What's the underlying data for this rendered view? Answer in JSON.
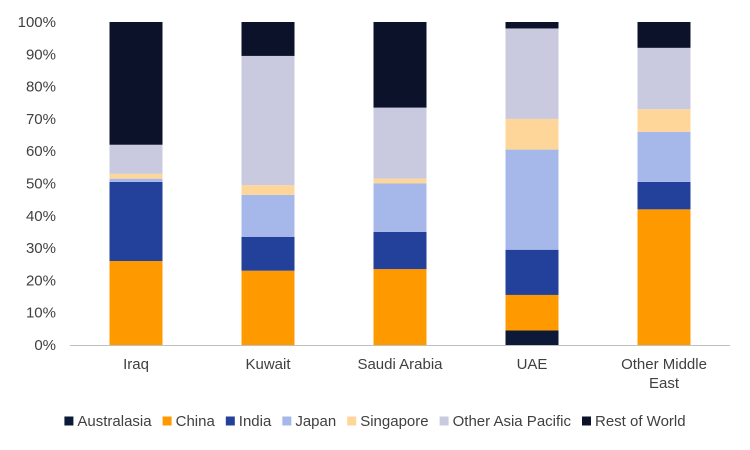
{
  "chart_data": {
    "type": "bar",
    "stacked": true,
    "categories": [
      "Iraq",
      "Kuwait",
      "Saudi Arabia",
      "UAE",
      "Other Middle East"
    ],
    "category_lines": [
      [
        "Iraq"
      ],
      [
        "Kuwait"
      ],
      [
        "Saudi Arabia"
      ],
      [
        "UAE"
      ],
      [
        "Other Middle",
        "East"
      ]
    ],
    "ylim": [
      0,
      100
    ],
    "y_ticks": [
      0,
      10,
      20,
      30,
      40,
      50,
      60,
      70,
      80,
      90,
      100
    ],
    "y_tick_suffix": "%",
    "grid": false,
    "legend_position": "bottom",
    "series": [
      {
        "name": "Australasia",
        "color": "#0c1a38",
        "values": [
          0,
          0,
          0,
          4.5,
          0
        ]
      },
      {
        "name": "China",
        "color": "#ff9900",
        "values": [
          26,
          23,
          23.5,
          11,
          42
        ]
      },
      {
        "name": "India",
        "color": "#23409a",
        "values": [
          24.5,
          10.5,
          11.5,
          14,
          8.5
        ]
      },
      {
        "name": "Japan",
        "color": "#a6b8ea",
        "values": [
          1,
          13,
          15,
          31,
          15.5
        ]
      },
      {
        "name": "Singapore",
        "color": "#ffd699",
        "values": [
          1.5,
          3,
          1.5,
          9.5,
          7
        ]
      },
      {
        "name": "Other Asia Pacific",
        "color": "#c9c9e0",
        "values": [
          9,
          40,
          22,
          28,
          19
        ]
      },
      {
        "name": "Rest of World",
        "color": "#0c1229",
        "values": [
          38,
          10.5,
          26.5,
          2,
          8
        ]
      }
    ]
  }
}
